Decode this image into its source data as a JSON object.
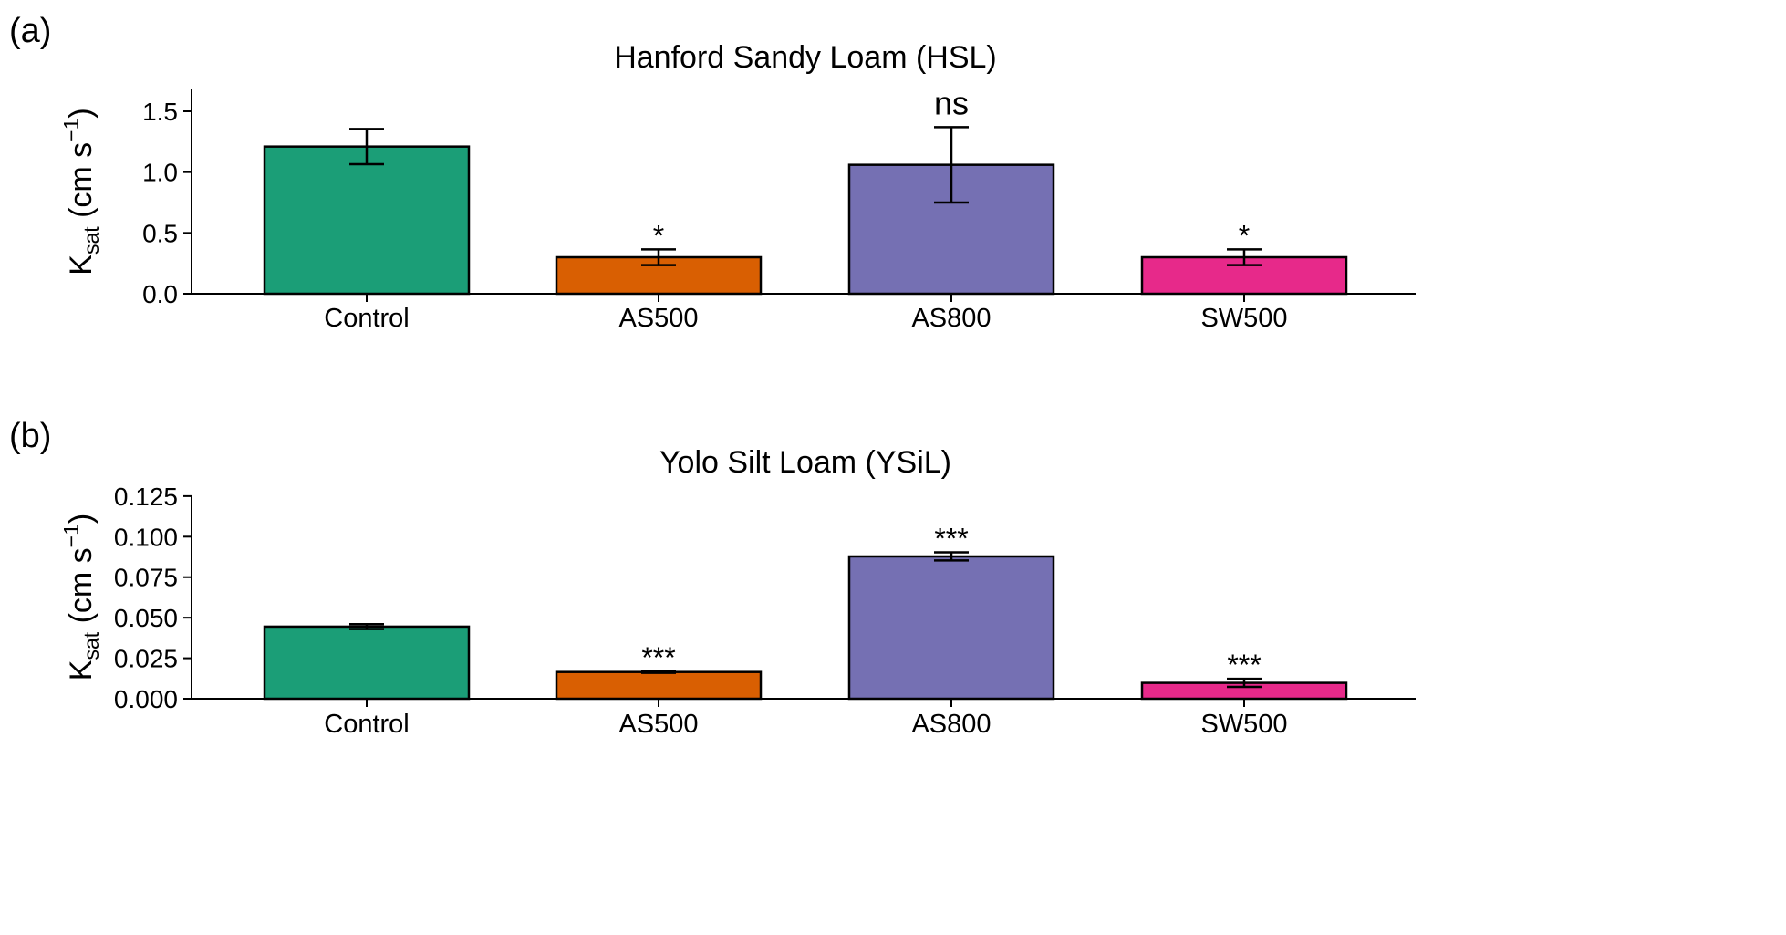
{
  "chart_data": [
    {
      "panel_label": "(a)",
      "type": "bar",
      "title": "Hanford Sandy Loam (HSL)",
      "ylabel_main": "K",
      "ylabel_sub": "sat",
      "ylabel_units": "(cm s",
      "ylabel_exp": "−1",
      "ylabel_close": ")",
      "categories": [
        "Control",
        "AS500",
        "AS800",
        "SW500"
      ],
      "values": [
        1.21,
        0.3,
        1.06,
        0.3
      ],
      "errors": [
        0.145,
        0.065,
        0.31,
        0.065
      ],
      "significance": [
        "",
        "*",
        "ns",
        "*"
      ],
      "colors": [
        "#1b9e77",
        "#d95f02",
        "#7570b3",
        "#e7298a"
      ],
      "yticks": [
        "0.0",
        "0.5",
        "1.0",
        "1.5"
      ],
      "ytick_values": [
        0,
        0.5,
        1.0,
        1.5
      ],
      "ylim": [
        0,
        1.68
      ]
    },
    {
      "panel_label": "(b)",
      "type": "bar",
      "title": "Yolo Silt Loam (YSiL)",
      "ylabel_main": "K",
      "ylabel_sub": "sat",
      "ylabel_units": "(cm s",
      "ylabel_exp": "−1",
      "ylabel_close": ")",
      "categories": [
        "Control",
        "AS500",
        "AS800",
        "SW500"
      ],
      "values": [
        0.0445,
        0.0165,
        0.0878,
        0.0098
      ],
      "errors": [
        0.0015,
        0.0005,
        0.0025,
        0.0025
      ],
      "significance": [
        "",
        "***",
        "***",
        "***"
      ],
      "colors": [
        "#1b9e77",
        "#d95f02",
        "#7570b3",
        "#e7298a"
      ],
      "yticks": [
        "0.000",
        "0.025",
        "0.050",
        "0.075",
        "0.100",
        "0.125"
      ],
      "ytick_values": [
        0,
        0.025,
        0.05,
        0.075,
        0.1,
        0.125
      ],
      "ylim": [
        0,
        0.1255
      ]
    }
  ]
}
